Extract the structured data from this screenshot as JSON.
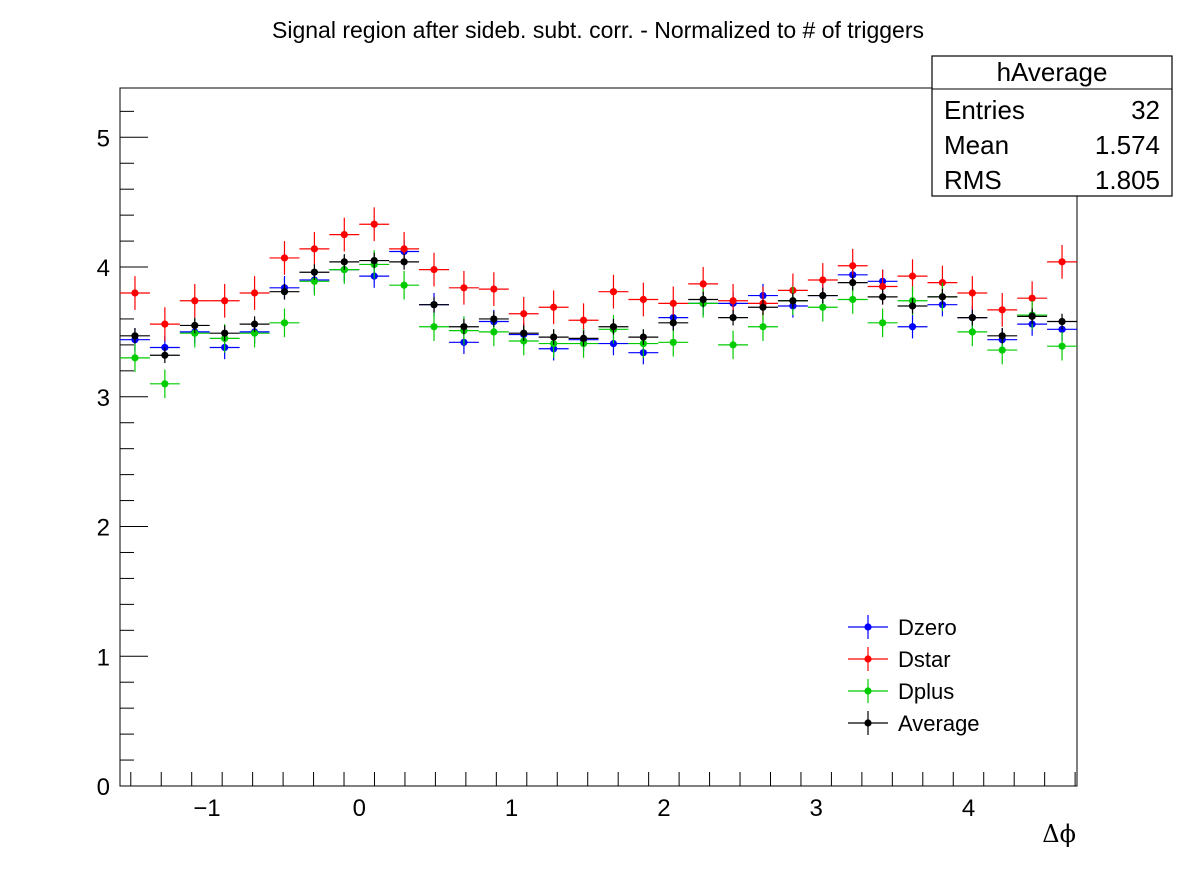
{
  "chart_data": {
    "type": "scatter",
    "title": "Signal region after sideb. subt. corr. - Normalized to # of triggers",
    "xlabel": "Δϕ",
    "ylabel": "",
    "xlim": [
      -1.5708,
      4.7124
    ],
    "ylim": [
      0,
      5.38
    ],
    "x_ticks": [
      -1,
      0,
      1,
      2,
      3,
      4
    ],
    "x_tick_labels": [
      "−1",
      "0",
      "1",
      "2",
      "3",
      "4"
    ],
    "y_ticks": [
      0,
      1,
      2,
      3,
      4,
      5
    ],
    "y_tick_labels": [
      "0",
      "1",
      "2",
      "3",
      "4",
      "5"
    ],
    "grid": false,
    "legend_position": "bottom-right",
    "x_bin_half_width": 0.0982,
    "x": [
      -1.4726,
      -1.2763,
      -1.0799,
      -0.8836,
      -0.6872,
      -0.4909,
      -0.2945,
      -0.0982,
      0.0982,
      0.2945,
      0.4909,
      0.6872,
      0.8836,
      1.0799,
      1.2763,
      1.4726,
      1.669,
      1.8653,
      2.0617,
      2.258,
      2.4544,
      2.6507,
      2.8471,
      3.0434,
      3.2398,
      3.4361,
      3.6325,
      3.8288,
      4.0252,
      4.2215,
      4.4179,
      4.6142
    ],
    "series": [
      {
        "name": "Dzero",
        "color": "#0000ff",
        "values": [
          3.44,
          3.38,
          3.5,
          3.38,
          3.5,
          3.84,
          3.9,
          3.98,
          3.93,
          4.12,
          3.71,
          3.42,
          3.58,
          3.48,
          3.37,
          3.44,
          3.41,
          3.34,
          3.61,
          3.72,
          3.72,
          3.78,
          3.7,
          3.78,
          3.94,
          3.89,
          3.54,
          3.71,
          3.61,
          3.44,
          3.56,
          3.52
        ],
        "errors": [
          0.09,
          0.09,
          0.09,
          0.09,
          0.09,
          0.09,
          0.09,
          0.09,
          0.09,
          0.09,
          0.09,
          0.09,
          0.09,
          0.09,
          0.09,
          0.09,
          0.09,
          0.09,
          0.09,
          0.09,
          0.09,
          0.09,
          0.09,
          0.09,
          0.09,
          0.09,
          0.09,
          0.09,
          0.09,
          0.09,
          0.09,
          0.09
        ]
      },
      {
        "name": "Dstar",
        "color": "#ff0000",
        "values": [
          3.8,
          3.56,
          3.74,
          3.74,
          3.8,
          4.07,
          4.14,
          4.25,
          4.33,
          4.14,
          3.98,
          3.84,
          3.83,
          3.64,
          3.69,
          3.59,
          3.81,
          3.75,
          3.72,
          3.87,
          3.74,
          3.72,
          3.82,
          3.9,
          4.01,
          3.85,
          3.93,
          3.88,
          3.8,
          3.67,
          3.76,
          4.04
        ],
        "errors": [
          0.13,
          0.13,
          0.13,
          0.13,
          0.13,
          0.13,
          0.13,
          0.13,
          0.13,
          0.13,
          0.13,
          0.13,
          0.13,
          0.13,
          0.13,
          0.13,
          0.13,
          0.13,
          0.13,
          0.13,
          0.13,
          0.13,
          0.13,
          0.13,
          0.13,
          0.13,
          0.13,
          0.13,
          0.13,
          0.13,
          0.13,
          0.13
        ]
      },
      {
        "name": "Dplus",
        "color": "#00cc00",
        "values": [
          3.3,
          3.1,
          3.49,
          3.45,
          3.49,
          3.57,
          3.89,
          3.98,
          4.02,
          3.86,
          3.54,
          3.51,
          3.5,
          3.43,
          3.41,
          3.41,
          3.52,
          3.41,
          3.42,
          3.72,
          3.4,
          3.54,
          3.74,
          3.69,
          3.75,
          3.57,
          3.74,
          3.77,
          3.5,
          3.36,
          3.63,
          3.39
        ],
        "errors": [
          0.11,
          0.11,
          0.11,
          0.11,
          0.11,
          0.11,
          0.11,
          0.11,
          0.11,
          0.11,
          0.11,
          0.11,
          0.11,
          0.11,
          0.11,
          0.11,
          0.11,
          0.11,
          0.11,
          0.11,
          0.11,
          0.11,
          0.11,
          0.11,
          0.11,
          0.11,
          0.11,
          0.11,
          0.11,
          0.11,
          0.11,
          0.11
        ]
      },
      {
        "name": "Average",
        "color": "#000000",
        "values": [
          3.47,
          3.32,
          3.55,
          3.49,
          3.56,
          3.81,
          3.96,
          4.04,
          4.05,
          4.04,
          3.71,
          3.54,
          3.6,
          3.49,
          3.46,
          3.45,
          3.54,
          3.46,
          3.57,
          3.75,
          3.61,
          3.69,
          3.74,
          3.78,
          3.88,
          3.77,
          3.7,
          3.77,
          3.61,
          3.47,
          3.62,
          3.58
        ],
        "errors": [
          0.06,
          0.06,
          0.06,
          0.06,
          0.06,
          0.06,
          0.06,
          0.06,
          0.06,
          0.06,
          0.06,
          0.06,
          0.06,
          0.06,
          0.06,
          0.06,
          0.06,
          0.06,
          0.06,
          0.06,
          0.06,
          0.06,
          0.06,
          0.06,
          0.06,
          0.06,
          0.06,
          0.06,
          0.06,
          0.06,
          0.06,
          0.06
        ]
      }
    ]
  },
  "stats_box": {
    "name": "hAverage",
    "entries_label": "Entries",
    "entries_value": "32",
    "mean_label": "Mean",
    "mean_value": "1.574",
    "rms_label": "RMS",
    "rms_value": "1.805"
  }
}
